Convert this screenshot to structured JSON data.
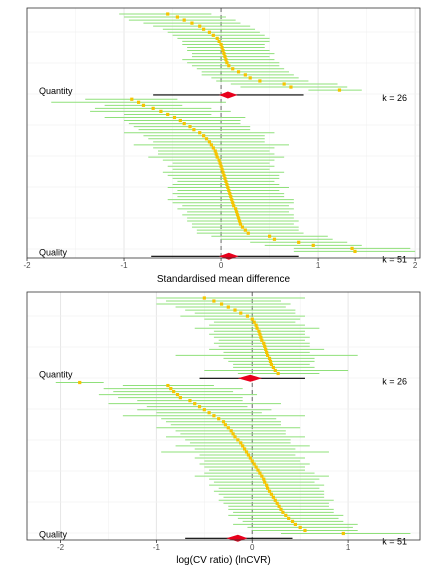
{
  "chart_data": [
    {
      "type": "forest",
      "xlabel": "Standardised mean difference",
      "xlim": [
        -2.0,
        2.05
      ],
      "ticks": [
        -2,
        -1,
        0,
        1,
        2
      ],
      "grid": true,
      "reference_line": 0,
      "groups": [
        {
          "label": "Quantity",
          "k_label": "k = 26",
          "k": 26,
          "summary": {
            "estimate": 0.07,
            "ci": [
              -0.02,
              0.17
            ],
            "pi": [
              -0.7,
              0.85
            ]
          },
          "effects": [
            {
              "est": -0.55,
              "lo": -1.05,
              "hi": -0.1
            },
            {
              "est": -0.45,
              "lo": -1.0,
              "hi": 0.05
            },
            {
              "est": -0.38,
              "lo": -0.95,
              "hi": 0.15
            },
            {
              "est": -0.3,
              "lo": -0.8,
              "hi": 0.2
            },
            {
              "est": -0.22,
              "lo": -0.7,
              "hi": 0.3
            },
            {
              "est": -0.18,
              "lo": -0.6,
              "hi": 0.35
            },
            {
              "est": -0.12,
              "lo": -0.55,
              "hi": 0.4
            },
            {
              "est": -0.08,
              "lo": -0.5,
              "hi": 0.45
            },
            {
              "est": -0.04,
              "lo": -0.45,
              "hi": 0.5
            },
            {
              "est": -0.02,
              "lo": -0.4,
              "hi": 0.5
            },
            {
              "est": 0.0,
              "lo": -0.4,
              "hi": 0.45
            },
            {
              "est": 0.01,
              "lo": -0.35,
              "hi": 0.45
            },
            {
              "est": 0.02,
              "lo": -0.35,
              "hi": 0.5
            },
            {
              "est": 0.03,
              "lo": -0.3,
              "hi": 0.55
            },
            {
              "est": 0.04,
              "lo": -0.3,
              "hi": 0.5
            },
            {
              "est": 0.05,
              "lo": -0.4,
              "hi": 0.55
            },
            {
              "est": 0.06,
              "lo": -0.35,
              "hi": 0.6
            },
            {
              "est": 0.08,
              "lo": -0.3,
              "hi": 0.6
            },
            {
              "est": 0.12,
              "lo": -0.25,
              "hi": 0.65
            },
            {
              "est": 0.18,
              "lo": -0.2,
              "hi": 0.7
            },
            {
              "est": 0.25,
              "lo": -0.2,
              "hi": 0.75
            },
            {
              "est": 0.3,
              "lo": -0.1,
              "hi": 0.8
            },
            {
              "est": 0.4,
              "lo": -0.05,
              "hi": 0.9
            },
            {
              "est": 0.65,
              "lo": 0.1,
              "hi": 1.2
            },
            {
              "est": 0.72,
              "lo": 0.2,
              "hi": 1.3
            },
            {
              "est": 1.22,
              "lo": 0.9,
              "hi": 1.45
            }
          ]
        },
        {
          "label": "Quality",
          "k_label": "k = 51",
          "k": 51,
          "summary": {
            "estimate": 0.08,
            "ci": [
              -0.02,
              0.18
            ],
            "pi": [
              -0.72,
              0.8
            ]
          },
          "effects": [
            {
              "est": -0.92,
              "lo": -1.4,
              "hi": -0.45
            },
            {
              "est": -0.85,
              "lo": -1.75,
              "hi": 0.05
            },
            {
              "est": -0.8,
              "lo": -1.2,
              "hi": -0.4
            },
            {
              "est": -0.7,
              "lo": -1.3,
              "hi": -0.1
            },
            {
              "est": -0.62,
              "lo": -1.35,
              "hi": 0.1
            },
            {
              "est": -0.55,
              "lo": -1.0,
              "hi": -0.1
            },
            {
              "est": -0.48,
              "lo": -1.2,
              "hi": 0.25
            },
            {
              "est": -0.42,
              "lo": -1.0,
              "hi": 0.2
            },
            {
              "est": -0.38,
              "lo": -0.95,
              "hi": 0.2
            },
            {
              "est": -0.32,
              "lo": -0.9,
              "hi": 0.3
            },
            {
              "est": -0.28,
              "lo": -0.85,
              "hi": 0.3
            },
            {
              "est": -0.22,
              "lo": -1.0,
              "hi": 0.55
            },
            {
              "est": -0.18,
              "lo": -0.8,
              "hi": 0.45
            },
            {
              "est": -0.15,
              "lo": -0.75,
              "hi": 0.45
            },
            {
              "est": -0.12,
              "lo": -0.7,
              "hi": 0.45
            },
            {
              "est": -0.1,
              "lo": -0.9,
              "hi": 0.7
            },
            {
              "est": -0.08,
              "lo": -0.7,
              "hi": 0.55
            },
            {
              "est": -0.06,
              "lo": -0.65,
              "hi": 0.5
            },
            {
              "est": -0.05,
              "lo": -0.65,
              "hi": 0.55
            },
            {
              "est": -0.04,
              "lo": -0.75,
              "hi": 0.65
            },
            {
              "est": -0.02,
              "lo": -0.6,
              "hi": 0.55
            },
            {
              "est": -0.01,
              "lo": -0.5,
              "hi": 0.5
            },
            {
              "est": 0.0,
              "lo": -0.55,
              "hi": 0.55
            },
            {
              "est": 0.01,
              "lo": -0.5,
              "hi": 0.5
            },
            {
              "est": 0.02,
              "lo": -0.6,
              "hi": 0.65
            },
            {
              "est": 0.03,
              "lo": -0.55,
              "hi": 0.6
            },
            {
              "est": 0.04,
              "lo": -0.5,
              "hi": 0.6
            },
            {
              "est": 0.05,
              "lo": -0.45,
              "hi": 0.55
            },
            {
              "est": 0.06,
              "lo": -0.5,
              "hi": 0.6
            },
            {
              "est": 0.07,
              "lo": -0.55,
              "hi": 0.7
            },
            {
              "est": 0.08,
              "lo": -0.45,
              "hi": 0.6
            },
            {
              "est": 0.09,
              "lo": -0.5,
              "hi": 0.65
            },
            {
              "est": 0.1,
              "lo": -0.45,
              "hi": 0.65
            },
            {
              "est": 0.11,
              "lo": -0.55,
              "hi": 0.75
            },
            {
              "est": 0.12,
              "lo": -0.5,
              "hi": 0.75
            },
            {
              "est": 0.13,
              "lo": -0.4,
              "hi": 0.7
            },
            {
              "est": 0.15,
              "lo": -0.45,
              "hi": 0.75
            },
            {
              "est": 0.16,
              "lo": -0.35,
              "hi": 0.7
            },
            {
              "est": 0.17,
              "lo": -0.4,
              "hi": 0.75
            },
            {
              "est": 0.18,
              "lo": -0.35,
              "hi": 0.75
            },
            {
              "est": 0.19,
              "lo": -0.35,
              "hi": 0.8
            },
            {
              "est": 0.2,
              "lo": -0.3,
              "hi": 0.75
            },
            {
              "est": 0.22,
              "lo": -0.3,
              "hi": 0.8
            },
            {
              "est": 0.25,
              "lo": -0.25,
              "hi": 0.8
            },
            {
              "est": 0.28,
              "lo": -0.25,
              "hi": 0.85
            },
            {
              "est": 0.5,
              "lo": -0.1,
              "hi": 1.1
            },
            {
              "est": 0.55,
              "lo": 0.0,
              "hi": 1.15
            },
            {
              "est": 0.8,
              "lo": 0.3,
              "hi": 1.3
            },
            {
              "est": 0.95,
              "lo": 0.45,
              "hi": 1.45
            },
            {
              "est": 1.35,
              "lo": 0.75,
              "hi": 1.95
            },
            {
              "est": 1.38,
              "lo": 0.75,
              "hi": 2.0
            }
          ]
        }
      ]
    },
    {
      "type": "forest",
      "xlabel": "log(CV ratio) (lnCVR)",
      "xlim": [
        -2.35,
        1.75
      ],
      "ticks": [
        -2,
        -1,
        0,
        1
      ],
      "grid": true,
      "reference_line": 0,
      "groups": [
        {
          "label": "Quantity",
          "k_label": "k = 26",
          "k": 26,
          "summary": {
            "estimate": -0.02,
            "ci": [
              -0.15,
              0.1
            ],
            "pi": [
              -0.55,
              0.55
            ]
          },
          "effects": [
            {
              "est": -0.5,
              "lo": -1.0,
              "hi": 0.55
            },
            {
              "est": -0.4,
              "lo": -0.9,
              "hi": 0.3
            },
            {
              "est": -0.32,
              "lo": -1.0,
              "hi": 0.4
            },
            {
              "est": -0.25,
              "lo": -0.8,
              "hi": 0.35
            },
            {
              "est": -0.18,
              "lo": -0.7,
              "hi": 0.45
            },
            {
              "est": -0.12,
              "lo": -0.6,
              "hi": 0.45
            },
            {
              "est": -0.05,
              "lo": -0.75,
              "hi": 0.55
            },
            {
              "est": 0.0,
              "lo": -0.5,
              "hi": 0.5
            },
            {
              "est": 0.02,
              "lo": -0.4,
              "hi": 0.45
            },
            {
              "est": 0.04,
              "lo": -0.45,
              "hi": 0.55
            },
            {
              "est": 0.05,
              "lo": -0.6,
              "hi": 0.7
            },
            {
              "est": 0.07,
              "lo": -0.4,
              "hi": 0.55
            },
            {
              "est": 0.08,
              "lo": -0.45,
              "hi": 0.55
            },
            {
              "est": 0.09,
              "lo": -0.4,
              "hi": 0.6
            },
            {
              "est": 0.1,
              "lo": -0.35,
              "hi": 0.55
            },
            {
              "est": 0.12,
              "lo": -0.4,
              "hi": 0.6
            },
            {
              "est": 0.13,
              "lo": -0.35,
              "hi": 0.6
            },
            {
              "est": 0.14,
              "lo": -0.45,
              "hi": 0.75
            },
            {
              "est": 0.15,
              "lo": -0.3,
              "hi": 0.6
            },
            {
              "est": 0.16,
              "lo": -0.8,
              "hi": 1.1
            },
            {
              "est": 0.18,
              "lo": -0.3,
              "hi": 0.65
            },
            {
              "est": 0.19,
              "lo": -0.25,
              "hi": 0.65
            },
            {
              "est": 0.2,
              "lo": -0.2,
              "hi": 0.6
            },
            {
              "est": 0.22,
              "lo": -0.2,
              "hi": 0.65
            },
            {
              "est": 0.24,
              "lo": -0.5,
              "hi": 1.0
            },
            {
              "est": 0.27,
              "lo": -0.15,
              "hi": 0.7
            }
          ]
        },
        {
          "label": "Quality",
          "k_label": "k = 51",
          "k": 51,
          "summary": {
            "estimate": -0.15,
            "ci": [
              -0.27,
              -0.05
            ],
            "pi": [
              -0.7,
              0.42
            ]
          },
          "effects": [
            {
              "est": -1.8,
              "lo": -2.05,
              "hi": -1.55
            },
            {
              "est": -0.88,
              "lo": -1.35,
              "hi": -0.4
            },
            {
              "est": -0.85,
              "lo": -1.55,
              "hi": -0.1
            },
            {
              "est": -0.82,
              "lo": -1.45,
              "hi": -0.2
            },
            {
              "est": -0.78,
              "lo": -1.6,
              "hi": 0.05
            },
            {
              "est": -0.75,
              "lo": -1.4,
              "hi": -0.1
            },
            {
              "est": -0.65,
              "lo": -1.2,
              "hi": -0.1
            },
            {
              "est": -0.6,
              "lo": -1.5,
              "hi": 0.3
            },
            {
              "est": -0.55,
              "lo": -1.1,
              "hi": -0.05
            },
            {
              "est": -0.5,
              "lo": -1.2,
              "hi": 0.2
            },
            {
              "est": -0.45,
              "lo": -1.0,
              "hi": 0.1
            },
            {
              "est": -0.4,
              "lo": -1.35,
              "hi": 0.55
            },
            {
              "est": -0.35,
              "lo": -0.95,
              "hi": 0.25
            },
            {
              "est": -0.3,
              "lo": -0.9,
              "hi": 0.3
            },
            {
              "est": -0.28,
              "lo": -0.85,
              "hi": 0.3
            },
            {
              "est": -0.25,
              "lo": -1.0,
              "hi": 0.5
            },
            {
              "est": -0.22,
              "lo": -0.8,
              "hi": 0.35
            },
            {
              "est": -0.2,
              "lo": -0.75,
              "hi": 0.35
            },
            {
              "est": -0.18,
              "lo": -0.9,
              "hi": 0.55
            },
            {
              "est": -0.15,
              "lo": -0.7,
              "hi": 0.4
            },
            {
              "est": -0.12,
              "lo": -0.65,
              "hi": 0.4
            },
            {
              "est": -0.1,
              "lo": -0.8,
              "hi": 0.6
            },
            {
              "est": -0.08,
              "lo": -0.6,
              "hi": 0.45
            },
            {
              "est": -0.06,
              "lo": -0.95,
              "hi": 0.8
            },
            {
              "est": -0.04,
              "lo": -0.55,
              "hi": 0.45
            },
            {
              "est": -0.02,
              "lo": -0.6,
              "hi": 0.55
            },
            {
              "est": 0.0,
              "lo": -0.5,
              "hi": 0.5
            },
            {
              "est": 0.02,
              "lo": -0.55,
              "hi": 0.6
            },
            {
              "est": 0.04,
              "lo": -0.5,
              "hi": 0.55
            },
            {
              "est": 0.06,
              "lo": -0.45,
              "hi": 0.55
            },
            {
              "est": 0.08,
              "lo": -0.5,
              "hi": 0.65
            },
            {
              "est": 0.1,
              "lo": -0.6,
              "hi": 0.8
            },
            {
              "est": 0.12,
              "lo": -0.45,
              "hi": 0.7
            },
            {
              "est": 0.13,
              "lo": -0.4,
              "hi": 0.65
            },
            {
              "est": 0.15,
              "lo": -0.45,
              "hi": 0.75
            },
            {
              "est": 0.16,
              "lo": -0.35,
              "hi": 0.7
            },
            {
              "est": 0.18,
              "lo": -0.4,
              "hi": 0.75
            },
            {
              "est": 0.2,
              "lo": -0.35,
              "hi": 0.75
            },
            {
              "est": 0.22,
              "lo": -0.3,
              "hi": 0.75
            },
            {
              "est": 0.24,
              "lo": -0.35,
              "hi": 0.85
            },
            {
              "est": 0.26,
              "lo": -0.3,
              "hi": 0.8
            },
            {
              "est": 0.28,
              "lo": -0.25,
              "hi": 0.8
            },
            {
              "est": 0.3,
              "lo": -0.25,
              "hi": 0.85
            },
            {
              "est": 0.32,
              "lo": -0.2,
              "hi": 0.85
            },
            {
              "est": 0.35,
              "lo": -0.25,
              "hi": 0.95
            },
            {
              "est": 0.38,
              "lo": -0.15,
              "hi": 0.9
            },
            {
              "est": 0.42,
              "lo": -0.1,
              "hi": 0.95
            },
            {
              "est": 0.45,
              "lo": -0.2,
              "hi": 1.1
            },
            {
              "est": 0.5,
              "lo": -0.05,
              "hi": 1.05
            },
            {
              "est": 0.55,
              "lo": 0.0,
              "hi": 1.1
            },
            {
              "est": 0.95,
              "lo": 0.3,
              "hi": 1.65
            }
          ]
        }
      ]
    }
  ],
  "colors": {
    "ci_line": "#8fe07a",
    "point": "#f5c400",
    "summary": "#e8001c",
    "grid": "#e6e6e6",
    "border": "#333333",
    "ref_line": "#777777"
  }
}
